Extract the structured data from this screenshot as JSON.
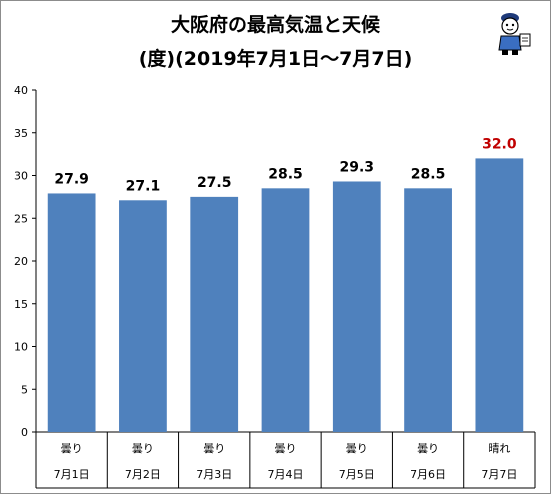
{
  "title_line1": "大阪府の最高気温と天候",
  "title_line2": "(度)(2019年7月1日〜7月7日)",
  "chart_data": {
    "type": "bar",
    "title": "大阪府の最高気温と天候",
    "subtitle": "(度)(2019年7月1日〜7月7日)",
    "categories": [
      "7月1日",
      "7月2日",
      "7月3日",
      "7月4日",
      "7月5日",
      "7月6日",
      "7月7日"
    ],
    "weather": [
      "曇り",
      "曇り",
      "曇り",
      "曇り",
      "曇り",
      "曇り",
      "晴れ"
    ],
    "values": [
      27.9,
      27.1,
      27.5,
      28.5,
      29.3,
      28.5,
      32.0
    ],
    "data_labels": [
      "27.9",
      "27.1",
      "27.5",
      "28.5",
      "29.3",
      "28.5",
      "32.0"
    ],
    "yticks": [
      0,
      5,
      10,
      15,
      20,
      25,
      30,
      35,
      40
    ],
    "ylim": [
      0,
      40
    ],
    "grid": false,
    "bar_color": "#4f81bd",
    "label_color": "#000000",
    "highlight_label_color": "#c00000",
    "highlight_index": 6
  }
}
